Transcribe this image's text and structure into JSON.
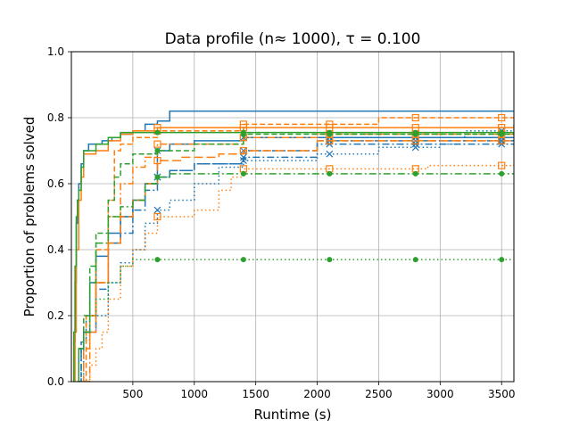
{
  "chart_data": {
    "type": "line",
    "title": "Data profile (n≈ 1000), τ = 0.100",
    "xlabel": "Runtime (s)",
    "ylabel": "Proportion of problems solved",
    "xlim": [
      0,
      3600
    ],
    "ylim": [
      0,
      1.0
    ],
    "xticks": [
      500,
      1000,
      1500,
      2000,
      2500,
      3000,
      3500
    ],
    "xtick_labels": [
      "500",
      "1000",
      "1500",
      "2000",
      "2500",
      "3000",
      "3500"
    ],
    "yticks": [
      0.0,
      0.2,
      0.4,
      0.6,
      0.8,
      1.0
    ],
    "ytick_labels": [
      "0.0",
      "0.2",
      "0.4",
      "0.6",
      "0.8",
      "1.0"
    ],
    "grid": true,
    "legend": "none",
    "series": [
      {
        "color": "#1f77b4",
        "dash": "solid",
        "marker": "none",
        "points": [
          [
            15,
            0.0
          ],
          [
            20,
            0.12
          ],
          [
            30,
            0.3
          ],
          [
            40,
            0.48
          ],
          [
            50,
            0.55
          ],
          [
            60,
            0.6
          ],
          [
            80,
            0.66
          ],
          [
            100,
            0.7
          ],
          [
            140,
            0.72
          ],
          [
            250,
            0.73
          ],
          [
            330,
            0.74
          ],
          [
            400,
            0.75
          ],
          [
            500,
            0.76
          ],
          [
            600,
            0.78
          ],
          [
            700,
            0.79
          ],
          [
            800,
            0.82
          ],
          [
            3600,
            0.82
          ]
        ]
      },
      {
        "color": "#1f77b4",
        "dash": "solid",
        "marker": "x",
        "points": [
          [
            50,
            0.0
          ],
          [
            60,
            0.1
          ],
          [
            100,
            0.15
          ],
          [
            150,
            0.3
          ],
          [
            200,
            0.38
          ],
          [
            300,
            0.45
          ],
          [
            400,
            0.5
          ],
          [
            500,
            0.55
          ],
          [
            600,
            0.6
          ],
          [
            700,
            0.7
          ],
          [
            800,
            0.72
          ],
          [
            1000,
            0.73
          ],
          [
            1400,
            0.74
          ],
          [
            3600,
            0.74
          ]
        ]
      },
      {
        "color": "#1f77b4",
        "dash": "dash",
        "marker": "x",
        "points": [
          [
            50,
            0.0
          ],
          [
            80,
            0.12
          ],
          [
            120,
            0.2
          ],
          [
            200,
            0.3
          ],
          [
            300,
            0.42
          ],
          [
            400,
            0.5
          ],
          [
            500,
            0.55
          ],
          [
            600,
            0.6
          ],
          [
            700,
            0.62
          ],
          [
            800,
            0.64
          ],
          [
            1000,
            0.66
          ],
          [
            1400,
            0.7
          ],
          [
            2000,
            0.73
          ],
          [
            3600,
            0.73
          ]
        ]
      },
      {
        "color": "#1f77b4",
        "dash": "dashdot",
        "marker": "x",
        "points": [
          [
            50,
            0.0
          ],
          [
            80,
            0.1
          ],
          [
            100,
            0.15
          ],
          [
            200,
            0.28
          ],
          [
            300,
            0.42
          ],
          [
            400,
            0.45
          ],
          [
            500,
            0.52
          ],
          [
            600,
            0.58
          ],
          [
            700,
            0.62
          ],
          [
            800,
            0.64
          ],
          [
            1000,
            0.66
          ],
          [
            1400,
            0.68
          ],
          [
            2000,
            0.72
          ],
          [
            3600,
            0.72
          ]
        ]
      },
      {
        "color": "#1f77b4",
        "dash": "dot",
        "marker": "x",
        "points": [
          [
            60,
            0.0
          ],
          [
            100,
            0.1
          ],
          [
            150,
            0.15
          ],
          [
            200,
            0.2
          ],
          [
            300,
            0.3
          ],
          [
            400,
            0.36
          ],
          [
            500,
            0.4
          ],
          [
            600,
            0.48
          ],
          [
            700,
            0.52
          ],
          [
            800,
            0.55
          ],
          [
            1000,
            0.6
          ],
          [
            1200,
            0.65
          ],
          [
            1400,
            0.67
          ],
          [
            2000,
            0.69
          ],
          [
            2500,
            0.71
          ],
          [
            3000,
            0.72
          ],
          [
            3200,
            0.76
          ],
          [
            3600,
            0.78
          ]
        ]
      },
      {
        "color": "#ff7f0e",
        "dash": "solid",
        "marker": "square",
        "points": [
          [
            20,
            0.0
          ],
          [
            30,
            0.15
          ],
          [
            40,
            0.4
          ],
          [
            60,
            0.55
          ],
          [
            80,
            0.62
          ],
          [
            100,
            0.69
          ],
          [
            200,
            0.7
          ],
          [
            300,
            0.73
          ],
          [
            400,
            0.75
          ],
          [
            500,
            0.76
          ],
          [
            700,
            0.77
          ],
          [
            3600,
            0.77
          ]
        ]
      },
      {
        "color": "#ff7f0e",
        "dash": "dash",
        "marker": "square",
        "points": [
          [
            100,
            0.0
          ],
          [
            120,
            0.2
          ],
          [
            200,
            0.4
          ],
          [
            300,
            0.55
          ],
          [
            350,
            0.7
          ],
          [
            400,
            0.72
          ],
          [
            500,
            0.74
          ],
          [
            700,
            0.76
          ],
          [
            1400,
            0.78
          ],
          [
            2500,
            0.8
          ],
          [
            3600,
            0.8
          ]
        ]
      },
      {
        "color": "#ff7f0e",
        "dash": "dashdot",
        "marker": "square",
        "points": [
          [
            100,
            0.0
          ],
          [
            150,
            0.15
          ],
          [
            200,
            0.3
          ],
          [
            300,
            0.5
          ],
          [
            400,
            0.6
          ],
          [
            500,
            0.65
          ],
          [
            600,
            0.68
          ],
          [
            700,
            0.72
          ],
          [
            1400,
            0.74
          ],
          [
            2000,
            0.75
          ],
          [
            3600,
            0.75
          ]
        ]
      },
      {
        "color": "#ff7f0e",
        "dash": "dash2",
        "marker": "square",
        "points": [
          [
            80,
            0.0
          ],
          [
            100,
            0.1
          ],
          [
            150,
            0.2
          ],
          [
            200,
            0.3
          ],
          [
            300,
            0.42
          ],
          [
            400,
            0.5
          ],
          [
            500,
            0.55
          ],
          [
            600,
            0.6
          ],
          [
            700,
            0.67
          ],
          [
            900,
            0.68
          ],
          [
            1200,
            0.69
          ],
          [
            1400,
            0.7
          ],
          [
            2000,
            0.73
          ],
          [
            3600,
            0.73
          ]
        ]
      },
      {
        "color": "#ff7f0e",
        "dash": "dot",
        "marker": "square",
        "points": [
          [
            100,
            0.0
          ],
          [
            150,
            0.05
          ],
          [
            200,
            0.1
          ],
          [
            250,
            0.15
          ],
          [
            300,
            0.25
          ],
          [
            400,
            0.35
          ],
          [
            500,
            0.4
          ],
          [
            600,
            0.45
          ],
          [
            700,
            0.5
          ],
          [
            1000,
            0.52
          ],
          [
            1200,
            0.58
          ],
          [
            1300,
            0.62
          ],
          [
            1400,
            0.645
          ],
          [
            2500,
            0.645
          ],
          [
            2900,
            0.655
          ],
          [
            3600,
            0.66
          ]
        ]
      },
      {
        "color": "#2ca02c",
        "dash": "solid",
        "marker": "circle",
        "points": [
          [
            15,
            0.0
          ],
          [
            20,
            0.15
          ],
          [
            30,
            0.35
          ],
          [
            40,
            0.5
          ],
          [
            50,
            0.55
          ],
          [
            60,
            0.58
          ],
          [
            80,
            0.65
          ],
          [
            100,
            0.7
          ],
          [
            200,
            0.72
          ],
          [
            300,
            0.74
          ],
          [
            400,
            0.755
          ],
          [
            3600,
            0.755
          ]
        ]
      },
      {
        "color": "#2ca02c",
        "dash": "dash",
        "marker": "circle",
        "points": [
          [
            50,
            0.0
          ],
          [
            60,
            0.1
          ],
          [
            100,
            0.2
          ],
          [
            150,
            0.35
          ],
          [
            200,
            0.45
          ],
          [
            300,
            0.55
          ],
          [
            350,
            0.62
          ],
          [
            400,
            0.66
          ],
          [
            500,
            0.69
          ],
          [
            700,
            0.7
          ],
          [
            1000,
            0.72
          ],
          [
            1400,
            0.75
          ],
          [
            3600,
            0.75
          ]
        ]
      },
      {
        "color": "#2ca02c",
        "dash": "dashdot",
        "marker": "circle",
        "points": [
          [
            50,
            0.0
          ],
          [
            60,
            0.1
          ],
          [
            100,
            0.15
          ],
          [
            150,
            0.3
          ],
          [
            200,
            0.42
          ],
          [
            300,
            0.5
          ],
          [
            400,
            0.53
          ],
          [
            500,
            0.55
          ],
          [
            600,
            0.6
          ],
          [
            700,
            0.62
          ],
          [
            800,
            0.63
          ],
          [
            3600,
            0.63
          ]
        ]
      },
      {
        "color": "#2ca02c",
        "dash": "dot",
        "marker": "circle",
        "points": [
          [
            50,
            0.0
          ],
          [
            60,
            0.1
          ],
          [
            100,
            0.15
          ],
          [
            150,
            0.2
          ],
          [
            200,
            0.25
          ],
          [
            300,
            0.3
          ],
          [
            400,
            0.35
          ],
          [
            500,
            0.37
          ],
          [
            3600,
            0.37
          ]
        ]
      }
    ]
  }
}
